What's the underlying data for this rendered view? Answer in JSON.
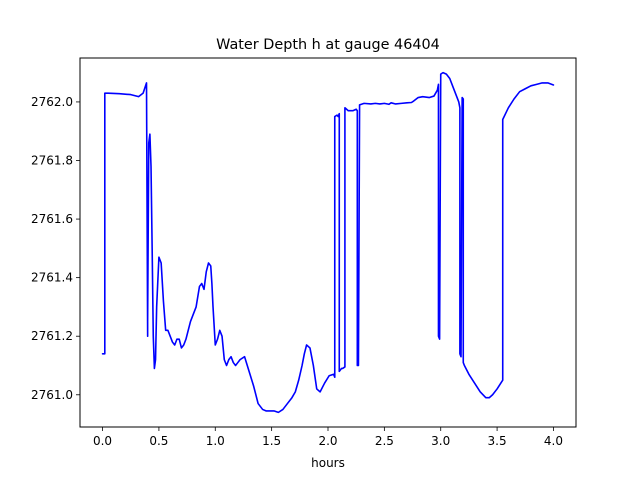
{
  "chart_data": {
    "type": "line",
    "title": "Water Depth h at gauge 46404",
    "xlabel": "hours",
    "ylabel": "",
    "xlim": [
      -0.2,
      4.2
    ],
    "ylim": [
      2760.89,
      2762.15
    ],
    "xticks": [
      0.0,
      0.5,
      1.0,
      1.5,
      2.0,
      2.5,
      3.0,
      3.5,
      4.0
    ],
    "xtick_labels": [
      "0.0",
      "0.5",
      "1.0",
      "1.5",
      "2.0",
      "2.5",
      "3.0",
      "3.5",
      "4.0"
    ],
    "yticks": [
      2761.0,
      2761.2,
      2761.4,
      2761.6,
      2761.8,
      2762.0
    ],
    "ytick_labels": [
      "2761.0",
      "2761.2",
      "2761.4",
      "2761.6",
      "2761.8",
      "2762.0"
    ],
    "grid": false,
    "series": [
      {
        "color": "#0000ff",
        "x": [
          0.0,
          0.02,
          0.02,
          0.05,
          0.15,
          0.25,
          0.32,
          0.36,
          0.39,
          0.4,
          0.4,
          0.41,
          0.42,
          0.43,
          0.44,
          0.45,
          0.46,
          0.47,
          0.48,
          0.5,
          0.52,
          0.54,
          0.56,
          0.58,
          0.6,
          0.62,
          0.64,
          0.66,
          0.68,
          0.7,
          0.72,
          0.74,
          0.76,
          0.78,
          0.8,
          0.83,
          0.86,
          0.88,
          0.9,
          0.92,
          0.94,
          0.96,
          0.97,
          0.98,
          1.0,
          1.02,
          1.04,
          1.06,
          1.08,
          1.1,
          1.12,
          1.14,
          1.16,
          1.18,
          1.2,
          1.22,
          1.26,
          1.3,
          1.34,
          1.38,
          1.42,
          1.45,
          1.48,
          1.52,
          1.56,
          1.6,
          1.64,
          1.68,
          1.71,
          1.74,
          1.77,
          1.79,
          1.81,
          1.84,
          1.87,
          1.9,
          1.93,
          1.97,
          2.01,
          2.05,
          2.06,
          2.06,
          2.08,
          2.09,
          2.1,
          2.1,
          2.12,
          2.13,
          2.15,
          2.15,
          2.18,
          2.2,
          2.22,
          2.25,
          2.26,
          2.26,
          2.27,
          2.28,
          2.28,
          2.32,
          2.38,
          2.42,
          2.46,
          2.5,
          2.54,
          2.56,
          2.6,
          2.65,
          2.7,
          2.74,
          2.76,
          2.8,
          2.84,
          2.9,
          2.94,
          2.97,
          2.98,
          2.98,
          2.99,
          3.0,
          3.02,
          3.05,
          3.08,
          3.11,
          3.14,
          3.16,
          3.17,
          3.17,
          3.18,
          3.19,
          3.2,
          3.2,
          3.21,
          3.25,
          3.3,
          3.35,
          3.4,
          3.43,
          3.46,
          3.5,
          3.55,
          3.55,
          3.6,
          3.65,
          3.7,
          3.75,
          3.8,
          3.85,
          3.9,
          3.95,
          4.0
        ],
        "y": [
          2761.14,
          2761.14,
          2762.03,
          2762.03,
          2762.028,
          2762.025,
          2762.018,
          2762.03,
          2762.065,
          2761.2,
          2761.25,
          2761.86,
          2761.89,
          2761.78,
          2761.5,
          2761.2,
          2761.09,
          2761.12,
          2761.3,
          2761.47,
          2761.45,
          2761.32,
          2761.22,
          2761.22,
          2761.2,
          2761.18,
          2761.17,
          2761.19,
          2761.19,
          2761.16,
          2761.17,
          2761.19,
          2761.22,
          2761.25,
          2761.27,
          2761.3,
          2761.37,
          2761.38,
          2761.36,
          2761.42,
          2761.45,
          2761.44,
          2761.38,
          2761.3,
          2761.17,
          2761.19,
          2761.22,
          2761.2,
          2761.12,
          2761.1,
          2761.12,
          2761.13,
          2761.11,
          2761.1,
          2761.11,
          2761.12,
          2761.13,
          2761.08,
          2761.03,
          2760.97,
          2760.95,
          2760.945,
          2760.945,
          2760.945,
          2760.94,
          2760.95,
          2760.97,
          2760.99,
          2761.01,
          2761.05,
          2761.1,
          2761.14,
          2761.17,
          2761.16,
          2761.1,
          2761.02,
          2761.01,
          2761.04,
          2761.065,
          2761.07,
          2761.06,
          2761.95,
          2761.955,
          2761.95,
          2761.96,
          2761.08,
          2761.09,
          2761.09,
          2761.095,
          2761.98,
          2761.97,
          2761.97,
          2761.97,
          2761.975,
          2761.97,
          2761.1,
          2761.1,
          2761.97,
          2761.99,
          2761.995,
          2761.993,
          2761.995,
          2761.993,
          2761.995,
          2761.992,
          2761.997,
          2761.993,
          2761.995,
          2761.997,
          2761.998,
          2762.003,
          2762.015,
          2762.018,
          2762.015,
          2762.02,
          2762.04,
          2762.06,
          2761.2,
          2761.19,
          2762.095,
          2762.1,
          2762.095,
          2762.08,
          2762.05,
          2762.02,
          2762.0,
          2761.98,
          2761.14,
          2761.13,
          2762.015,
          2762.01,
          2761.11,
          2761.1,
          2761.07,
          2761.04,
          2761.01,
          2760.99,
          2760.99,
          2761.0,
          2761.02,
          2761.05,
          2761.94,
          2761.98,
          2762.01,
          2762.035,
          2762.045,
          2762.055,
          2762.06,
          2762.065,
          2762.065,
          2762.058
        ]
      }
    ]
  }
}
